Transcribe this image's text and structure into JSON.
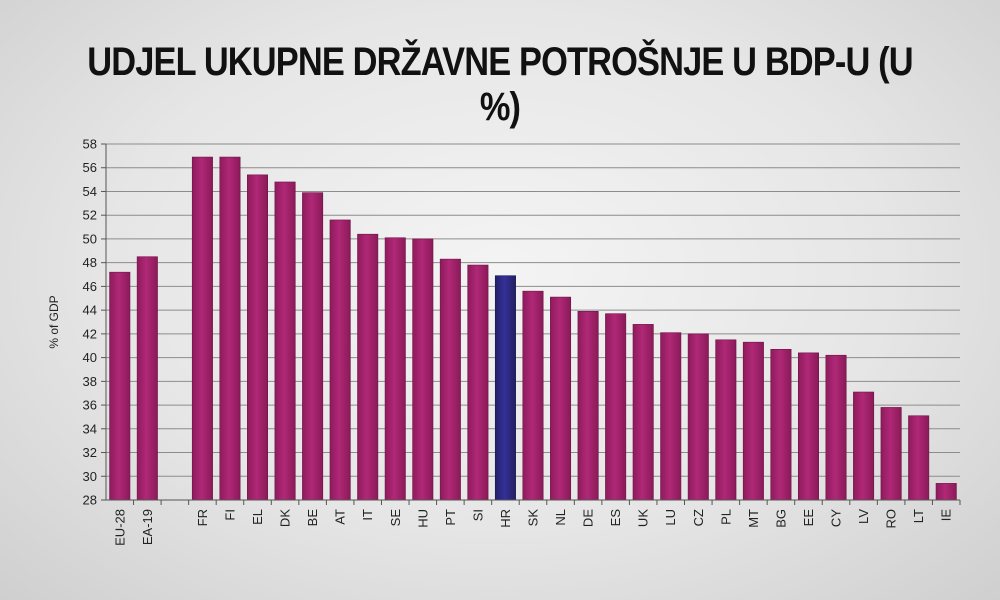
{
  "colors": {
    "bar": "#a8236f",
    "bar_highlight": "#2e2a7c",
    "grid": "#8c8c8c",
    "axis": "#555555"
  },
  "chart_data": {
    "type": "bar",
    "title": "UDJEL UKUPNE DRŽAVNE POTROŠNJE U BDP-U (U %)",
    "xlabel": "",
    "ylabel": "% of GDP",
    "ylim": [
      28,
      58
    ],
    "yticks": [
      28,
      30,
      32,
      34,
      36,
      38,
      40,
      42,
      44,
      46,
      48,
      50,
      52,
      54,
      56,
      58
    ],
    "grid": true,
    "highlight": "HR",
    "categories": [
      "EU-28",
      "EA-19",
      "",
      "FR",
      "FI",
      "EL",
      "DK",
      "BE",
      "AT",
      "IT",
      "SE",
      "HU",
      "PT",
      "SI",
      "HR",
      "SK",
      "NL",
      "DE",
      "ES",
      "UK",
      "LU",
      "CZ",
      "PL",
      "MT",
      "BG",
      "EE",
      "CY",
      "LV",
      "RO",
      "LT",
      "IE"
    ],
    "values": [
      47.2,
      48.5,
      null,
      56.9,
      56.9,
      55.4,
      54.8,
      53.9,
      51.6,
      50.4,
      50.1,
      50.0,
      48.3,
      47.8,
      46.9,
      45.6,
      45.1,
      43.9,
      43.7,
      42.8,
      42.1,
      42.0,
      41.5,
      41.3,
      40.7,
      40.4,
      40.2,
      37.1,
      35.8,
      35.1,
      29.4
    ]
  }
}
